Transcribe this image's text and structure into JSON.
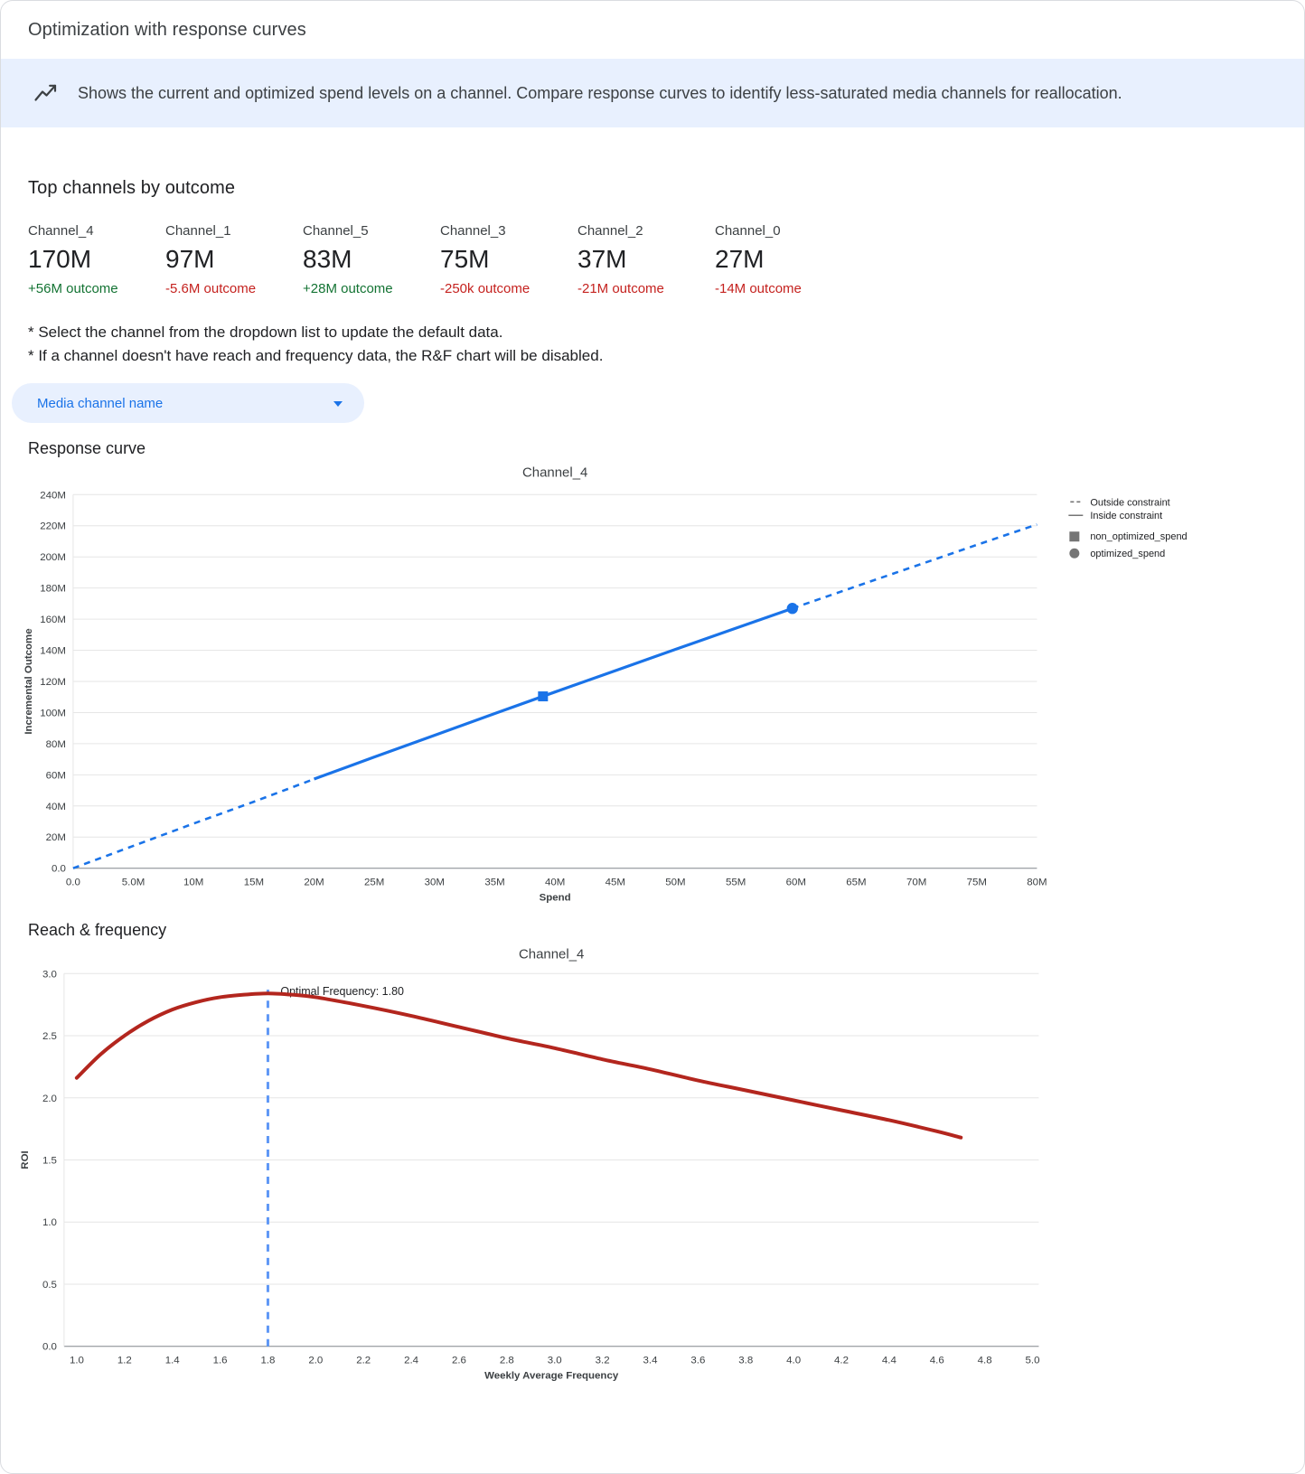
{
  "header": {
    "title": "Optimization with response curves"
  },
  "banner": {
    "icon": "insights-icon",
    "text": "Shows the current and optimized spend levels on a channel. Compare response curves to identify less-saturated media channels for reallocation."
  },
  "top_channels": {
    "heading": "Top channels by outcome",
    "items": [
      {
        "name": "Channel_4",
        "value": "170M",
        "outcome": "+56M outcome",
        "trend": "positive"
      },
      {
        "name": "Channel_1",
        "value": "97M",
        "outcome": "-5.6M outcome",
        "trend": "negative"
      },
      {
        "name": "Channel_5",
        "value": "83M",
        "outcome": "+28M outcome",
        "trend": "positive"
      },
      {
        "name": "Channel_3",
        "value": "75M",
        "outcome": "-250k outcome",
        "trend": "negative"
      },
      {
        "name": "Channel_2",
        "value": "37M",
        "outcome": "-21M outcome",
        "trend": "negative"
      },
      {
        "name": "Channel_0",
        "value": "27M",
        "outcome": "-14M outcome",
        "trend": "negative"
      }
    ]
  },
  "notes": {
    "line1": "* Select the channel from the dropdown list to update the default data.",
    "line2": "* If a channel doesn't have reach and frequency data, the R&F chart will be disabled."
  },
  "dropdown": {
    "label": "Media channel name"
  },
  "sections": {
    "response_curve": "Response curve",
    "reach_frequency": "Reach & frequency"
  },
  "colors": {
    "accent_blue": "#1a73e8",
    "vline_blue": "#5e97f6",
    "curve_red": "#b3261e",
    "positive_green": "#137333",
    "negative_red": "#c5221f",
    "banner_bg": "#e8f0fe",
    "grid": "#e6e6e6",
    "axis": "#80868b",
    "legend_swatch": "#757575",
    "tick_text": "#3c4043"
  },
  "chart_data": [
    {
      "id": "response_curve",
      "type": "line",
      "title": "Channel_4",
      "xlabel": "Spend",
      "ylabel": "Incremental Outcome",
      "units": "millions",
      "xlim": [
        0,
        80
      ],
      "ylim": [
        0,
        240
      ],
      "x_ticks": [
        0,
        5,
        10,
        15,
        20,
        25,
        30,
        35,
        40,
        45,
        50,
        55,
        60,
        65,
        70,
        75,
        80
      ],
      "x_tick_labels": [
        "0.0",
        "5.0M",
        "10M",
        "15M",
        "20M",
        "25M",
        "30M",
        "35M",
        "40M",
        "45M",
        "50M",
        "55M",
        "60M",
        "65M",
        "70M",
        "75M",
        "80M"
      ],
      "y_ticks": [
        0,
        20,
        40,
        60,
        80,
        100,
        120,
        140,
        160,
        180,
        200,
        220,
        240
      ],
      "y_tick_labels": [
        "0.0",
        "20M",
        "40M",
        "60M",
        "80M",
        "100M",
        "120M",
        "140M",
        "160M",
        "180M",
        "200M",
        "220M",
        "240M"
      ],
      "curve_x": [
        0,
        5,
        10,
        15,
        20,
        25,
        30,
        35,
        40,
        45,
        50,
        55,
        60,
        65,
        70,
        75,
        80
      ],
      "curve_y": [
        0,
        14.4,
        28.7,
        42.7,
        57.3,
        71.4,
        85.4,
        99.4,
        113.2,
        126.9,
        140.6,
        154.2,
        167.7,
        181.1,
        194.4,
        207.7,
        220.8
      ],
      "solid_segment": [
        20,
        59.7
      ],
      "markers": [
        {
          "label": "non_optimized_spend",
          "shape": "square",
          "x": 39,
          "y": 110.4
        },
        {
          "label": "optimized_spend",
          "shape": "circle",
          "x": 59.7,
          "y": 166.9
        }
      ],
      "legend": [
        {
          "label": "Outside constraint",
          "swatch": "dashed-line"
        },
        {
          "label": "Inside constraint",
          "swatch": "solid-line"
        },
        {
          "label": "non_optimized_spend",
          "swatch": "square"
        },
        {
          "label": "optimized_spend",
          "swatch": "circle"
        }
      ]
    },
    {
      "id": "reach_frequency",
      "type": "line",
      "title": "Channel_4",
      "xlabel": "Weekly Average Frequency",
      "ylabel": "ROI",
      "xlim": [
        0.947,
        5.026
      ],
      "ylim": [
        0,
        3.0
      ],
      "x_ticks": [
        1.0,
        1.2,
        1.4,
        1.6,
        1.8,
        2.0,
        2.2,
        2.4,
        2.6,
        2.8,
        3.0,
        3.2,
        3.4,
        3.6,
        3.8,
        4.0,
        4.2,
        4.4,
        4.6,
        4.8,
        5.0
      ],
      "x_tick_labels": [
        "1.0",
        "1.2",
        "1.4",
        "1.6",
        "1.8",
        "2.0",
        "2.2",
        "2.4",
        "2.6",
        "2.8",
        "3.0",
        "3.2",
        "3.4",
        "3.6",
        "3.8",
        "4.0",
        "4.2",
        "4.4",
        "4.6",
        "4.8",
        "5.0"
      ],
      "y_ticks": [
        0,
        0.5,
        1.0,
        1.5,
        2.0,
        2.5,
        3.0
      ],
      "y_tick_labels": [
        "0.0",
        "0.5",
        "1.0",
        "1.5",
        "2.0",
        "2.5",
        "3.0"
      ],
      "curve_x": [
        1.0,
        1.1,
        1.2,
        1.3,
        1.4,
        1.5,
        1.6,
        1.7,
        1.8,
        1.9,
        2.0,
        2.2,
        2.4,
        2.6,
        2.8,
        3.0,
        3.2,
        3.4,
        3.6,
        3.8,
        4.0,
        4.2,
        4.4,
        4.6,
        4.7
      ],
      "curve_y": [
        2.16,
        2.35,
        2.5,
        2.62,
        2.71,
        2.77,
        2.81,
        2.83,
        2.84,
        2.83,
        2.81,
        2.74,
        2.66,
        2.57,
        2.48,
        2.4,
        2.31,
        2.23,
        2.14,
        2.06,
        1.98,
        1.9,
        1.82,
        1.73,
        1.68
      ],
      "optimal_frequency": 1.8,
      "vline_x": 1.8,
      "vline_top": 2.87,
      "annotation": "Optimal Frequency: 1.80"
    }
  ]
}
